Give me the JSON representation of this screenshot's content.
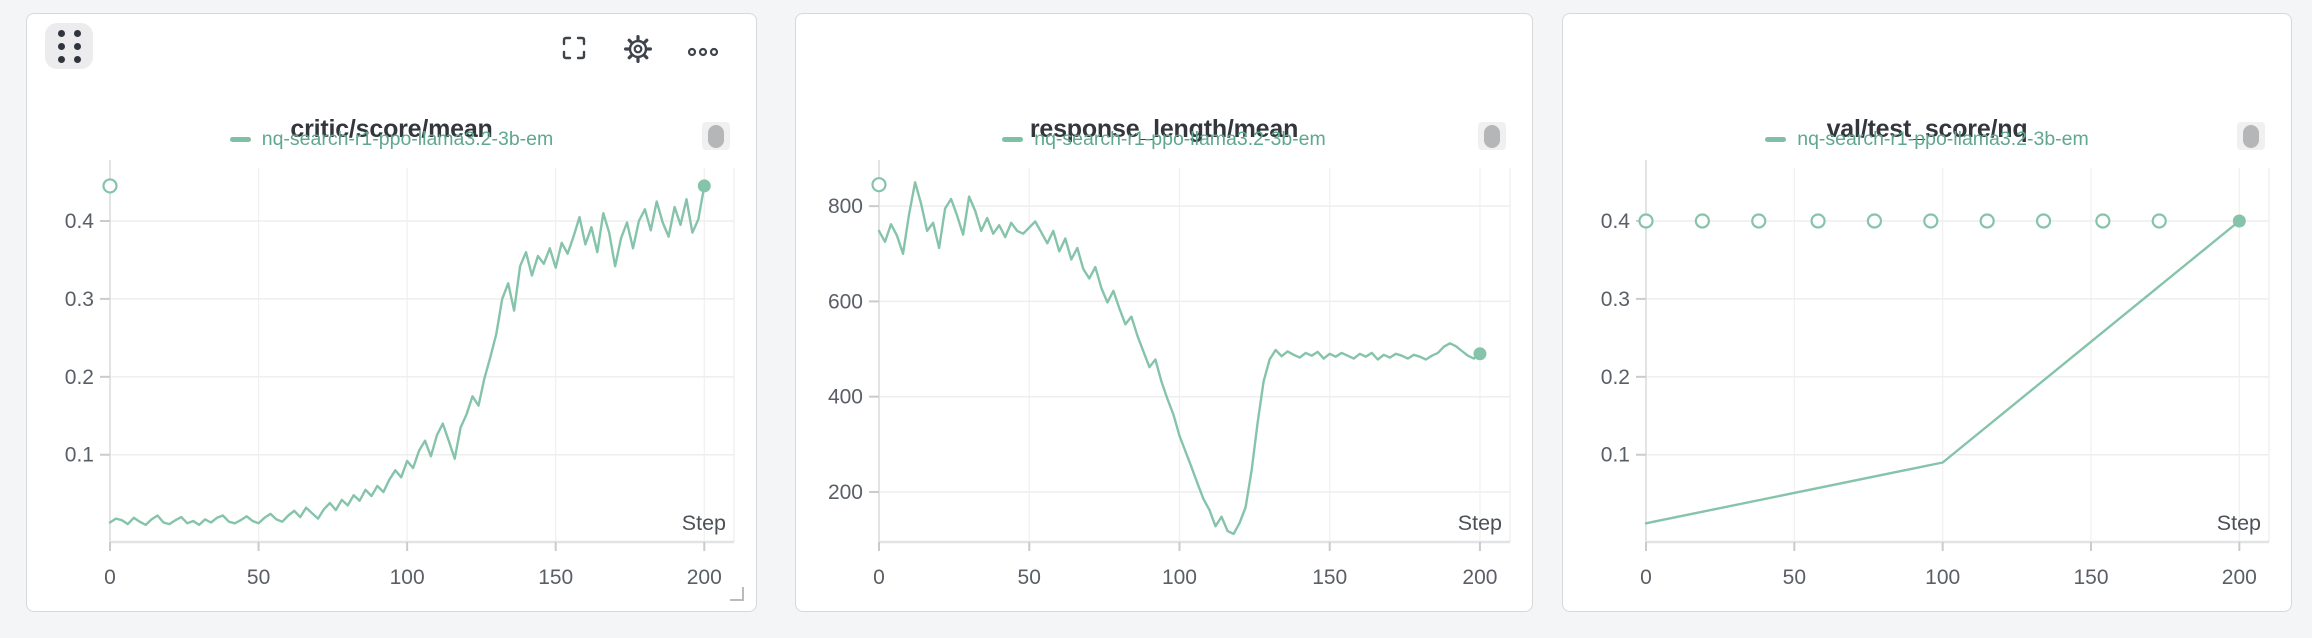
{
  "page": {
    "background_color": "#f4f5f6"
  },
  "colors": {
    "accent": "#85c4aa",
    "legend_dash": "#7ec0a6",
    "legend_text": "#5fa88f",
    "title_text": "#33373d",
    "axis_text": "#5a5e66",
    "step_text": "#4d5158",
    "grid": "#eeeeef",
    "grid_vertical": "#f0f0f1",
    "axis_line": "#e2e3e5",
    "tick": "#c9cbce",
    "icon": "#3f444c",
    "panel_border": "#d7d8da",
    "panel_background": "#ffffff",
    "handle_background": "#ececee",
    "handle_dots": "#30353d",
    "scrollbar_track": "#f0f0f1",
    "scrollbar_thumb": "#b4b6b8"
  },
  "run": {
    "name": "nq-search-r1-ppo-llama3.2-3b-em",
    "color": "#85c4aa"
  },
  "panel_toolbar": {
    "drag_handle_icon": "grip-dots-icon",
    "fullscreen_icon": "expand-icon",
    "settings_icon": "gear-icon",
    "menu_icon": "ellipsis-icon"
  },
  "chart_data": [
    {
      "type": "line",
      "title": "critic/score/mean",
      "xlabel": "Step",
      "ylabel": "",
      "x_ticks": [
        0,
        50,
        100,
        150,
        200
      ],
      "y_ticks": [
        0.1,
        0.2,
        0.3,
        0.4
      ],
      "xlim": [
        0,
        210
      ],
      "ylim": [
        -0.012,
        0.468
      ],
      "grid": true,
      "legend_position": "top-center",
      "series": [
        {
          "name": "nq-search-r1-ppo-llama3.2-3b-em",
          "color": "#85c4aa",
          "points": [
            [
              0,
              0.013
            ],
            [
              2,
              0.018
            ],
            [
              4,
              0.016
            ],
            [
              6,
              0.011
            ],
            [
              8,
              0.019
            ],
            [
              10,
              0.014
            ],
            [
              12,
              0.01
            ],
            [
              14,
              0.017
            ],
            [
              16,
              0.022
            ],
            [
              18,
              0.013
            ],
            [
              20,
              0.011
            ],
            [
              22,
              0.016
            ],
            [
              24,
              0.02
            ],
            [
              26,
              0.012
            ],
            [
              28,
              0.015
            ],
            [
              30,
              0.01
            ],
            [
              32,
              0.017
            ],
            [
              34,
              0.013
            ],
            [
              36,
              0.019
            ],
            [
              38,
              0.022
            ],
            [
              40,
              0.014
            ],
            [
              42,
              0.012
            ],
            [
              44,
              0.016
            ],
            [
              46,
              0.021
            ],
            [
              48,
              0.015
            ],
            [
              50,
              0.012
            ],
            [
              52,
              0.019
            ],
            [
              54,
              0.024
            ],
            [
              56,
              0.017
            ],
            [
              58,
              0.014
            ],
            [
              60,
              0.022
            ],
            [
              62,
              0.028
            ],
            [
              64,
              0.02
            ],
            [
              66,
              0.032
            ],
            [
              68,
              0.025
            ],
            [
              70,
              0.018
            ],
            [
              72,
              0.03
            ],
            [
              74,
              0.038
            ],
            [
              76,
              0.029
            ],
            [
              78,
              0.042
            ],
            [
              80,
              0.035
            ],
            [
              82,
              0.048
            ],
            [
              84,
              0.041
            ],
            [
              86,
              0.055
            ],
            [
              88,
              0.047
            ],
            [
              90,
              0.06
            ],
            [
              92,
              0.052
            ],
            [
              94,
              0.068
            ],
            [
              96,
              0.08
            ],
            [
              98,
              0.071
            ],
            [
              100,
              0.092
            ],
            [
              102,
              0.083
            ],
            [
              104,
              0.105
            ],
            [
              106,
              0.118
            ],
            [
              108,
              0.098
            ],
            [
              110,
              0.125
            ],
            [
              112,
              0.14
            ],
            [
              114,
              0.118
            ],
            [
              116,
              0.095
            ],
            [
              118,
              0.135
            ],
            [
              120,
              0.152
            ],
            [
              122,
              0.175
            ],
            [
              124,
              0.163
            ],
            [
              126,
              0.198
            ],
            [
              128,
              0.225
            ],
            [
              130,
              0.255
            ],
            [
              132,
              0.3
            ],
            [
              134,
              0.32
            ],
            [
              136,
              0.285
            ],
            [
              138,
              0.342
            ],
            [
              140,
              0.36
            ],
            [
              142,
              0.33
            ],
            [
              144,
              0.355
            ],
            [
              146,
              0.345
            ],
            [
              148,
              0.365
            ],
            [
              150,
              0.34
            ],
            [
              152,
              0.372
            ],
            [
              154,
              0.358
            ],
            [
              156,
              0.38
            ],
            [
              158,
              0.405
            ],
            [
              160,
              0.37
            ],
            [
              162,
              0.392
            ],
            [
              164,
              0.36
            ],
            [
              166,
              0.41
            ],
            [
              168,
              0.385
            ],
            [
              170,
              0.342
            ],
            [
              172,
              0.378
            ],
            [
              174,
              0.398
            ],
            [
              176,
              0.365
            ],
            [
              178,
              0.4
            ],
            [
              180,
              0.415
            ],
            [
              182,
              0.388
            ],
            [
              184,
              0.425
            ],
            [
              186,
              0.398
            ],
            [
              188,
              0.38
            ],
            [
              190,
              0.418
            ],
            [
              192,
              0.395
            ],
            [
              194,
              0.428
            ],
            [
              196,
              0.385
            ],
            [
              198,
              0.402
            ],
            [
              200,
              0.445
            ]
          ]
        }
      ],
      "open_markers": [
        [
          0,
          0.445
        ]
      ],
      "end_marker": [
        200,
        0.445
      ]
    },
    {
      "type": "line",
      "title": "response_length/mean",
      "xlabel": "Step",
      "ylabel": "",
      "x_ticks": [
        0,
        50,
        100,
        150,
        200
      ],
      "y_ticks": [
        200,
        400,
        600,
        800
      ],
      "xlim": [
        0,
        210
      ],
      "ylim": [
        95,
        880
      ],
      "grid": true,
      "legend_position": "top-center",
      "series": [
        {
          "name": "nq-search-r1-ppo-llama3.2-3b-em",
          "color": "#85c4aa",
          "points": [
            [
              0,
              748
            ],
            [
              2,
              725
            ],
            [
              4,
              762
            ],
            [
              6,
              738
            ],
            [
              8,
              700
            ],
            [
              10,
              782
            ],
            [
              12,
              850
            ],
            [
              14,
              805
            ],
            [
              16,
              748
            ],
            [
              18,
              765
            ],
            [
              20,
              712
            ],
            [
              22,
              795
            ],
            [
              24,
              815
            ],
            [
              26,
              780
            ],
            [
              28,
              740
            ],
            [
              30,
              820
            ],
            [
              32,
              790
            ],
            [
              34,
              748
            ],
            [
              36,
              775
            ],
            [
              38,
              742
            ],
            [
              40,
              760
            ],
            [
              42,
              735
            ],
            [
              44,
              765
            ],
            [
              46,
              748
            ],
            [
              48,
              742
            ],
            [
              50,
              755
            ],
            [
              52,
              768
            ],
            [
              54,
              745
            ],
            [
              56,
              722
            ],
            [
              58,
              748
            ],
            [
              60,
              705
            ],
            [
              62,
              732
            ],
            [
              64,
              688
            ],
            [
              66,
              712
            ],
            [
              68,
              668
            ],
            [
              70,
              648
            ],
            [
              72,
              672
            ],
            [
              74,
              628
            ],
            [
              76,
              598
            ],
            [
              78,
              622
            ],
            [
              80,
              585
            ],
            [
              82,
              552
            ],
            [
              84,
              568
            ],
            [
              86,
              528
            ],
            [
              88,
              495
            ],
            [
              90,
              462
            ],
            [
              92,
              478
            ],
            [
              94,
              432
            ],
            [
              96,
              395
            ],
            [
              98,
              362
            ],
            [
              100,
              318
            ],
            [
              102,
              285
            ],
            [
              104,
              252
            ],
            [
              106,
              218
            ],
            [
              108,
              185
            ],
            [
              110,
              162
            ],
            [
              112,
              128
            ],
            [
              114,
              148
            ],
            [
              116,
              118
            ],
            [
              118,
              112
            ],
            [
              120,
              135
            ],
            [
              122,
              168
            ],
            [
              124,
              245
            ],
            [
              126,
              345
            ],
            [
              128,
              432
            ],
            [
              130,
              478
            ],
            [
              132,
              498
            ],
            [
              134,
              485
            ],
            [
              136,
              495
            ],
            [
              138,
              488
            ],
            [
              140,
              482
            ],
            [
              142,
              492
            ],
            [
              144,
              486
            ],
            [
              146,
              494
            ],
            [
              148,
              480
            ],
            [
              150,
              490
            ],
            [
              152,
              484
            ],
            [
              154,
              492
            ],
            [
              156,
              486
            ],
            [
              158,
              480
            ],
            [
              160,
              490
            ],
            [
              162,
              484
            ],
            [
              164,
              492
            ],
            [
              166,
              478
            ],
            [
              168,
              488
            ],
            [
              170,
              482
            ],
            [
              172,
              490
            ],
            [
              174,
              486
            ],
            [
              176,
              480
            ],
            [
              178,
              488
            ],
            [
              180,
              484
            ],
            [
              182,
              478
            ],
            [
              184,
              486
            ],
            [
              186,
              492
            ],
            [
              188,
              505
            ],
            [
              190,
              512
            ],
            [
              192,
              506
            ],
            [
              194,
              496
            ],
            [
              196,
              486
            ],
            [
              198,
              480
            ],
            [
              200,
              490
            ]
          ]
        }
      ],
      "open_markers": [
        [
          0,
          845
        ]
      ],
      "end_marker": [
        200,
        490
      ]
    },
    {
      "type": "line",
      "title": "val/test_score/nq",
      "xlabel": "Step",
      "ylabel": "",
      "x_ticks": [
        0,
        50,
        100,
        150,
        200
      ],
      "y_ticks": [
        0.1,
        0.2,
        0.3,
        0.4
      ],
      "xlim": [
        0,
        210
      ],
      "ylim": [
        -0.012,
        0.468
      ],
      "grid": true,
      "legend_position": "top-center",
      "series": [
        {
          "name": "nq-search-r1-ppo-llama3.2-3b-em",
          "color": "#85c4aa",
          "points": [
            [
              0,
              0.012
            ],
            [
              100,
              0.09
            ],
            [
              200,
              0.4
            ]
          ]
        }
      ],
      "open_markers": [
        [
          0,
          0.4
        ],
        [
          19,
          0.4
        ],
        [
          38,
          0.4
        ],
        [
          58,
          0.4
        ],
        [
          77,
          0.4
        ],
        [
          96,
          0.4
        ],
        [
          115,
          0.4
        ],
        [
          134,
          0.4
        ],
        [
          154,
          0.4
        ],
        [
          173,
          0.4
        ]
      ],
      "end_marker": [
        200,
        0.4
      ]
    }
  ]
}
